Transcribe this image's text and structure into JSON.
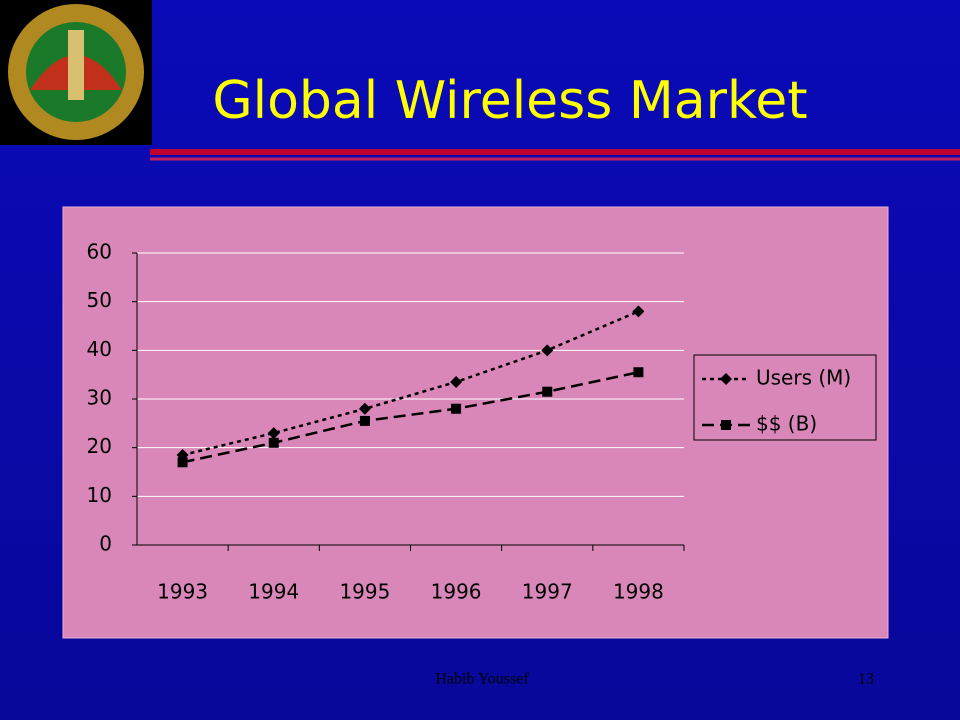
{
  "chart_data": {
    "type": "line",
    "title": "Global Wireless Market",
    "categories": [
      "1993",
      "1994",
      "1995",
      "1996",
      "1997",
      "1998"
    ],
    "series": [
      {
        "name": "Users (M)",
        "color": "#000000",
        "dash": "dotted",
        "marker": "diamond",
        "values": [
          18.5,
          23,
          28,
          33.5,
          40,
          48
        ]
      },
      {
        "name": "$$ (B)",
        "color": "#000000",
        "dash": "dashed",
        "marker": "square",
        "values": [
          17,
          21,
          25.5,
          28,
          31.5,
          35.5
        ]
      }
    ],
    "ylim": [
      0,
      60
    ],
    "yticks": [
      0,
      10,
      20,
      30,
      40,
      50,
      60
    ],
    "grid": true,
    "legend": "right"
  },
  "footer": {
    "author": "Habib Youssef",
    "page": "13"
  }
}
